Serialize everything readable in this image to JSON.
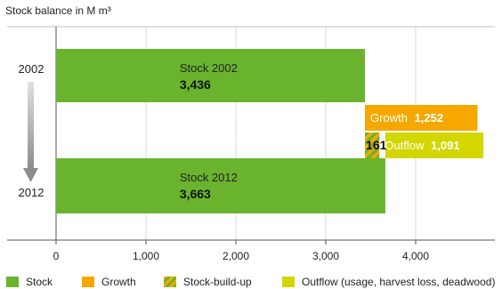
{
  "chart_data": {
    "type": "bar",
    "title": "Stock balance in M m³",
    "xlim": [
      0,
      4000
    ],
    "xticks": [
      "0",
      "1,000",
      "2,000",
      "3,000",
      "4,000"
    ],
    "xtick_values": [
      0,
      1000,
      2000,
      3000,
      4000
    ],
    "grid": true,
    "year_labels": [
      "2002",
      "2012"
    ],
    "stocks": [
      {
        "label": "Stock 2002",
        "value": 3436,
        "value_label": "3,436"
      },
      {
        "label": "Stock 2012",
        "value": 3663,
        "value_label": "3,663"
      }
    ],
    "growth": {
      "label": "Growth",
      "value": 1252,
      "value_label": "1,252",
      "start": 3436,
      "end": 4688
    },
    "outflow": {
      "label": "Outflow",
      "value": 1091,
      "value_label": "1,091",
      "start": 3663,
      "end": 4754
    },
    "stock_build_up": {
      "value": 161,
      "value_label": "161",
      "start": 3436,
      "end": 3597
    },
    "legend": [
      {
        "label": "Stock",
        "color": "#6ab42d"
      },
      {
        "label": "Growth",
        "color": "#f7a800"
      },
      {
        "label": "Stock-build-up",
        "color": "hatch"
      },
      {
        "label": "Outflow (usage, harvest loss, deadwood)",
        "color": "#d4d600"
      }
    ],
    "legend_position": "bottom"
  },
  "colors": {
    "stock": "#6ab42d",
    "growth": "#f7a800",
    "outflow": "#d4d600",
    "hatch_a": "#6ab42d",
    "hatch_b": "#f7a800",
    "grid": "#d8d8d8",
    "arrow": "#9a9a9a"
  }
}
